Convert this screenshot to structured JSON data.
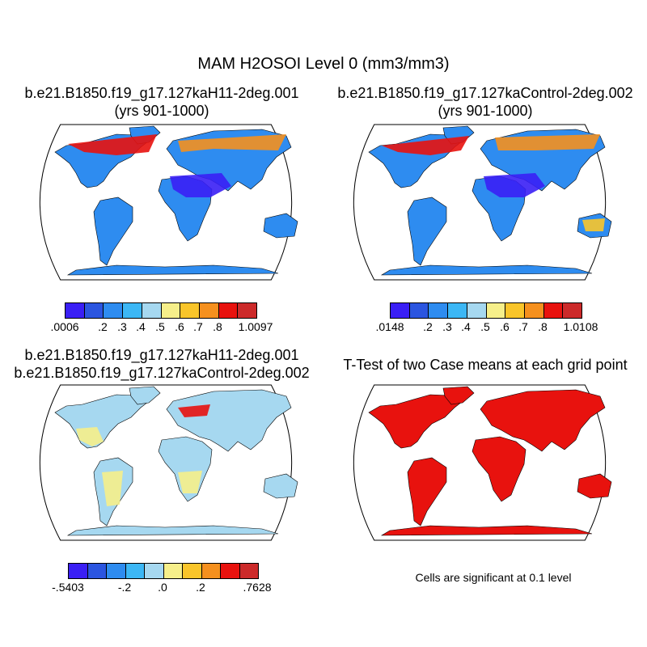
{
  "title": "MAM H2OSOI Level 0 (mm3/mm3)",
  "palette": [
    "#3a1ff5",
    "#2b55e0",
    "#2e8cf0",
    "#3cb7f5",
    "#a6d8f0",
    "#f6ef8a",
    "#f9c52a",
    "#f5901e",
    "#e8120e",
    "#cc2a2a"
  ],
  "land_colors": {
    "top_left": "#2e8cf0",
    "top_right": "#2e8cf0",
    "bottom_left": "#a6d8f0",
    "bottom_right": "#e8120e"
  },
  "panels": [
    {
      "title_line1": "b.e21.B1850.f19_g17.127kaH11-2deg.001",
      "title_line2": "(yrs 901-1000)",
      "colorbar_ticks": [
        ".0006",
        ".2",
        ".3",
        ".4",
        ".5",
        ".6",
        ".7",
        ".8",
        "1.0097"
      ]
    },
    {
      "title_line1": "b.e21.B1850.f19_g17.127kaControl-2deg.002",
      "title_line2": "(yrs 901-1000)",
      "colorbar_ticks": [
        ".0148",
        ".2",
        ".3",
        ".4",
        ".5",
        ".6",
        ".7",
        ".8",
        "1.0108"
      ]
    },
    {
      "title_line1": "b.e21.B1850.f19_g17.127kaH11-2deg.001",
      "title_line2": "b.e21.B1850.f19_g17.127kaControl-2deg.002",
      "colorbar_ticks": [
        "-.5403",
        "-.2",
        ".0",
        ".2",
        ".7628"
      ]
    },
    {
      "title_line1": "T-Test of two Case means at each grid point",
      "note": "Cells are significant at 0.1 level"
    }
  ]
}
